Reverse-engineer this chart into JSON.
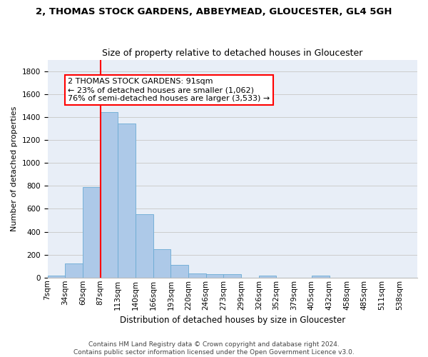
{
  "title": "2, THOMAS STOCK GARDENS, ABBEYMEAD, GLOUCESTER, GL4 5GH",
  "subtitle": "Size of property relative to detached houses in Gloucester",
  "xlabel": "Distribution of detached houses by size in Gloucester",
  "ylabel": "Number of detached properties",
  "bin_labels": [
    "7sqm",
    "34sqm",
    "60sqm",
    "87sqm",
    "113sqm",
    "140sqm",
    "166sqm",
    "193sqm",
    "220sqm",
    "246sqm",
    "273sqm",
    "299sqm",
    "326sqm",
    "352sqm",
    "379sqm",
    "405sqm",
    "432sqm",
    "458sqm",
    "485sqm",
    "511sqm",
    "538sqm"
  ],
  "bar_values": [
    15,
    125,
    790,
    1445,
    1345,
    550,
    250,
    110,
    35,
    30,
    30,
    0,
    20,
    0,
    0,
    20,
    0,
    0,
    0,
    0,
    0
  ],
  "bar_color": "#adc9e8",
  "bar_edge_color": "#6aaad4",
  "vline_color": "red",
  "annotation_text": "2 THOMAS STOCK GARDENS: 91sqm\n← 23% of detached houses are smaller (1,062)\n76% of semi-detached houses are larger (3,533) →",
  "annotation_box_color": "white",
  "annotation_box_edge_color": "red",
  "ylim": [
    0,
    1900
  ],
  "yticks": [
    0,
    200,
    400,
    600,
    800,
    1000,
    1200,
    1400,
    1600,
    1800
  ],
  "grid_color": "#cccccc",
  "bg_color": "#e8eef7",
  "footer": "Contains HM Land Registry data © Crown copyright and database right 2024.\nContains public sector information licensed under the Open Government Licence v3.0.",
  "title_fontsize": 9.5,
  "subtitle_fontsize": 9,
  "xlabel_fontsize": 8.5,
  "ylabel_fontsize": 8,
  "tick_fontsize": 7.5,
  "footer_fontsize": 6.5,
  "annotation_fontsize": 8
}
